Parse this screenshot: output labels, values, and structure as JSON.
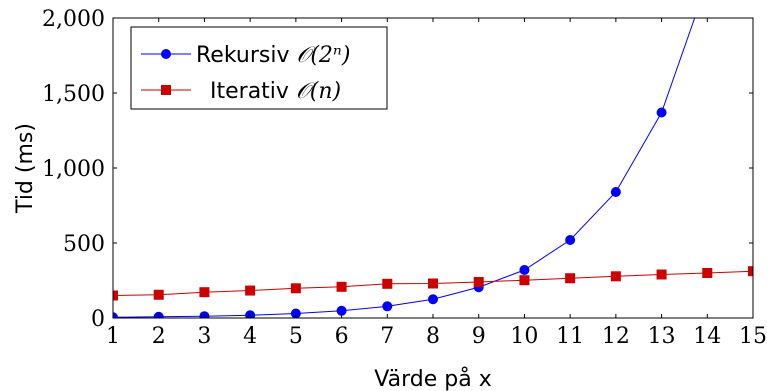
{
  "chart_data": {
    "type": "line",
    "xlabel": "Värde på x",
    "ylabel": "Tid (ms)",
    "xlim": [
      1,
      15
    ],
    "ylim": [
      0,
      2000
    ],
    "x_ticks": [
      "1",
      "2",
      "3",
      "4",
      "5",
      "6",
      "7",
      "8",
      "9",
      "10",
      "11",
      "12",
      "13",
      "14",
      "15"
    ],
    "y_ticks": [
      "0",
      "500",
      "1,000",
      "1,500",
      "2,000"
    ],
    "y_tick_values": [
      0,
      500,
      1000,
      1500,
      2000
    ],
    "grid": false,
    "legend_position": "top-left",
    "series": [
      {
        "name": "Rekursiv 𝒪(2ⁿ)",
        "legend_text": "Rekursiv",
        "legend_math": "𝒪(2ⁿ)",
        "color": "#0000ff",
        "marker": "circle",
        "x": [
          1,
          2,
          3,
          4,
          5,
          6,
          7,
          8,
          9,
          10,
          11,
          12,
          13,
          14
        ],
        "values": [
          5,
          8,
          12,
          18,
          30,
          48,
          78,
          125,
          205,
          320,
          520,
          840,
          1370,
          2240
        ]
      },
      {
        "name": "Iterativ 𝒪(n)",
        "legend_text": "Iterativ",
        "legend_math": "𝒪(n)",
        "color": "#cc0000",
        "marker": "square",
        "x": [
          1,
          2,
          3,
          4,
          5,
          6,
          7,
          8,
          9,
          10,
          11,
          12,
          13,
          14,
          15
        ],
        "values": [
          150,
          155,
          172,
          183,
          198,
          208,
          228,
          230,
          240,
          252,
          265,
          278,
          290,
          300,
          312
        ]
      }
    ]
  }
}
